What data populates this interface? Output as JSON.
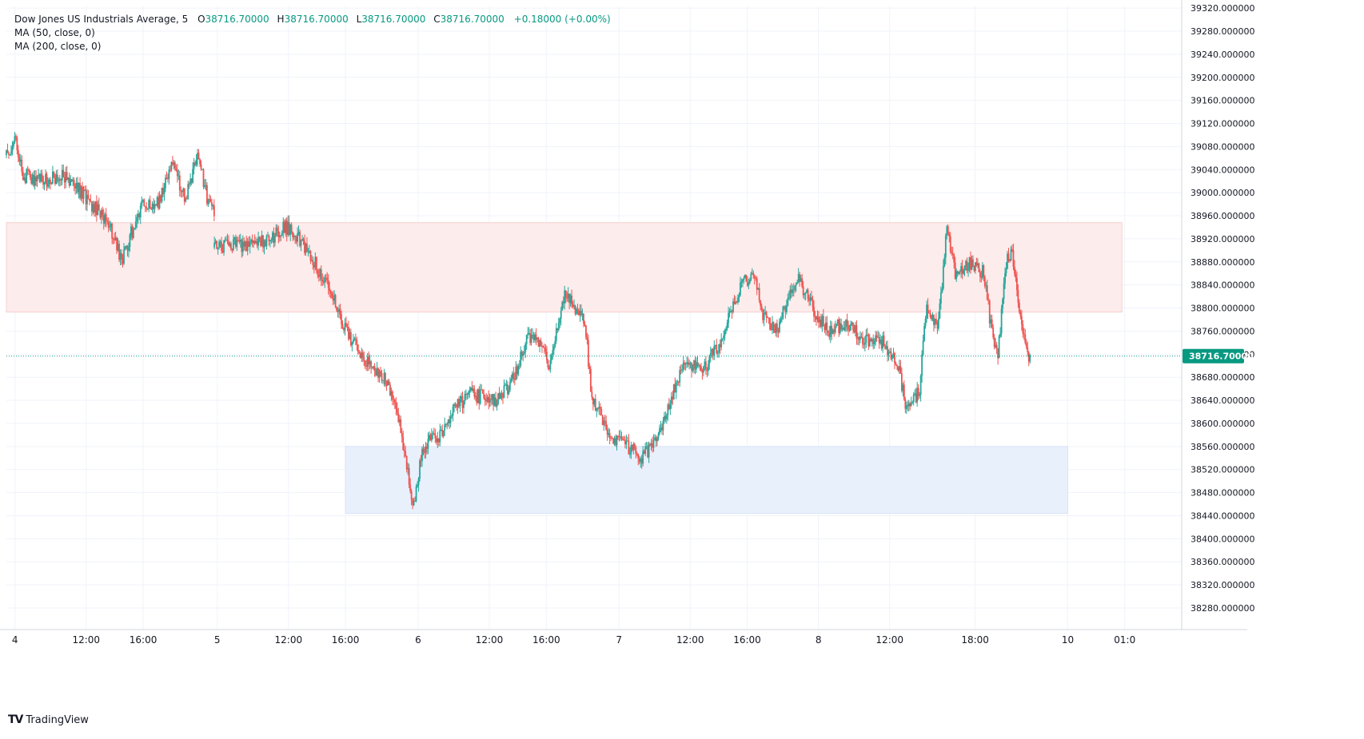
{
  "legend": {
    "symbol": "Dow Jones US Industrials Average, 5",
    "open_label": "O",
    "open": "38716.70000",
    "high_label": "H",
    "high": "38716.70000",
    "low_label": "L",
    "low": "38716.70000",
    "close_label": "C",
    "close": "38716.70000",
    "change": "+0.18000 (+0.00%)",
    "ma50": "MA (50, close, 0)",
    "ma200": "MA (200, close, 0)"
  },
  "last_price_label": "38716.70000",
  "brand": "TradingView",
  "colors": {
    "up": "#26a69a",
    "down": "#ef5350",
    "last_price": "#089981",
    "resistance_zone": "#fdecec",
    "support_zone": "#e8f0fc",
    "grid": "#f0f3fa"
  },
  "chart_data": {
    "type": "candlestick",
    "ylim": [
      38240,
      39320
    ],
    "y_ticks": [
      39320,
      39280,
      39240,
      39200,
      39160,
      39120,
      39080,
      39040,
      39000,
      38960,
      38920,
      38880,
      38840,
      38800,
      38760,
      38720,
      38680,
      38640,
      38600,
      38560,
      38520,
      38480,
      38440,
      38400,
      38360,
      38320,
      38280
    ],
    "y_tick_labels": [
      "39320.000000",
      "39280.000000",
      "39240.000000",
      "39200.000000",
      "39160.000000",
      "39120.000000",
      "39080.000000",
      "39040.000000",
      "39000.000000",
      "38960.000000",
      "38920.000000",
      "38880.000000",
      "38840.000000",
      "38800.000000",
      "38760.000000",
      "38720.000000",
      "38680.000000",
      "38640.000000",
      "38600.000000",
      "38560.000000",
      "38520.000000",
      "38480.000000",
      "38440.000000",
      "38400.000000",
      "38360.000000",
      "38320.000000",
      "38280.000000"
    ],
    "x_ticks": [
      {
        "t": 0.0,
        "label": "4"
      },
      {
        "t": 5.0,
        "label": "12:00"
      },
      {
        "t": 9.0,
        "label": "16:00"
      },
      {
        "t": 14.2,
        "label": "5"
      },
      {
        "t": 19.2,
        "label": "12:00"
      },
      {
        "t": 23.2,
        "label": "16:00"
      },
      {
        "t": 28.3,
        "label": "6"
      },
      {
        "t": 33.3,
        "label": "12:00"
      },
      {
        "t": 37.3,
        "label": "16:00"
      },
      {
        "t": 42.4,
        "label": "7"
      },
      {
        "t": 47.4,
        "label": "12:00"
      },
      {
        "t": 51.4,
        "label": "16:00"
      },
      {
        "t": 56.4,
        "label": "8"
      },
      {
        "t": 61.4,
        "label": "12:00"
      },
      {
        "t": 67.4,
        "label": "18:00"
      },
      {
        "t": 73.9,
        "label": "10"
      },
      {
        "t": 77.9,
        "label": "01:0"
      }
    ],
    "t_range": [
      -0.6,
      81.9
    ],
    "last_price": 38716.7,
    "zones": [
      {
        "name": "resistance",
        "t_start": -0.6,
        "t_end": 77.7,
        "y_low": 38793,
        "y_high": 38948
      },
      {
        "name": "support",
        "t_start": 23.2,
        "t_end": 73.9,
        "y_low": 38444,
        "y_high": 38560
      }
    ],
    "segments": [
      {
        "t_start": -0.6,
        "t_end": 14.0,
        "seed": 11,
        "anchors": [
          [
            -0.6,
            39065
          ],
          [
            0.0,
            39090
          ],
          [
            0.6,
            39030
          ],
          [
            2.0,
            39020
          ],
          [
            3.5,
            39030
          ],
          [
            5.0,
            38990
          ],
          [
            6.5,
            38950
          ],
          [
            7.5,
            38880
          ],
          [
            8.0,
            38920
          ],
          [
            9.0,
            38980
          ],
          [
            10.0,
            38980
          ],
          [
            11.0,
            39050
          ],
          [
            12.0,
            38990
          ],
          [
            12.8,
            39070
          ],
          [
            13.6,
            38980
          ],
          [
            14.0,
            38960
          ]
        ]
      },
      {
        "t_start": 14.0,
        "t_end": 23.0,
        "seed": 23,
        "anchors": [
          [
            14.0,
            38905
          ],
          [
            15.0,
            38910
          ],
          [
            16.5,
            38910
          ],
          [
            18.0,
            38920
          ],
          [
            19.0,
            38940
          ],
          [
            20.0,
            38920
          ],
          [
            21.0,
            38880
          ],
          [
            22.0,
            38840
          ],
          [
            23.0,
            38770
          ],
          [
            24.0,
            38730
          ],
          [
            25.0,
            38700
          ],
          [
            26.0,
            38680
          ],
          [
            27.0,
            38600
          ],
          [
            27.5,
            38520
          ],
          [
            28.0,
            38460
          ],
          [
            28.6,
            38560
          ],
          [
            30.0,
            38580
          ],
          [
            31.0,
            38630
          ],
          [
            32.0,
            38650
          ],
          [
            33.0,
            38645
          ],
          [
            34.0,
            38640
          ],
          [
            35.0,
            38680
          ],
          [
            36.0,
            38750
          ],
          [
            37.0,
            38740
          ],
          [
            37.5,
            38700
          ],
          [
            38.5,
            38820
          ],
          [
            39.0,
            38810
          ],
          [
            40.0,
            38780
          ],
          [
            40.5,
            38640
          ],
          [
            41.0,
            38620
          ],
          [
            42.0,
            38570
          ],
          [
            43.0,
            38560
          ],
          [
            44.0,
            38540
          ],
          [
            45.0,
            38570
          ],
          [
            46.0,
            38640
          ],
          [
            47.0,
            38700
          ],
          [
            48.5,
            38700
          ],
          [
            49.5,
            38740
          ],
          [
            50.0,
            38780
          ],
          [
            51.0,
            38840
          ],
          [
            51.8,
            38860
          ],
          [
            52.5,
            38790
          ],
          [
            53.5,
            38760
          ],
          [
            54.0,
            38800
          ],
          [
            55.0,
            38850
          ],
          [
            56.0,
            38800
          ],
          [
            57.0,
            38760
          ],
          [
            58.0,
            38770
          ],
          [
            59.0,
            38760
          ],
          [
            60.0,
            38740
          ],
          [
            61.0,
            38740
          ],
          [
            62.0,
            38700
          ],
          [
            62.6,
            38620
          ],
          [
            63.5,
            38660
          ],
          [
            64.0,
            38810
          ],
          [
            64.8,
            38760
          ],
          [
            65.4,
            38940
          ],
          [
            66.0,
            38860
          ],
          [
            67.0,
            38880
          ],
          [
            68.0,
            38860
          ],
          [
            68.5,
            38770
          ],
          [
            69.0,
            38720
          ],
          [
            69.6,
            38880
          ],
          [
            70.0,
            38900
          ],
          [
            70.5,
            38800
          ],
          [
            71.0,
            38720
          ],
          [
            71.3,
            38716.7
          ]
        ]
      }
    ]
  }
}
